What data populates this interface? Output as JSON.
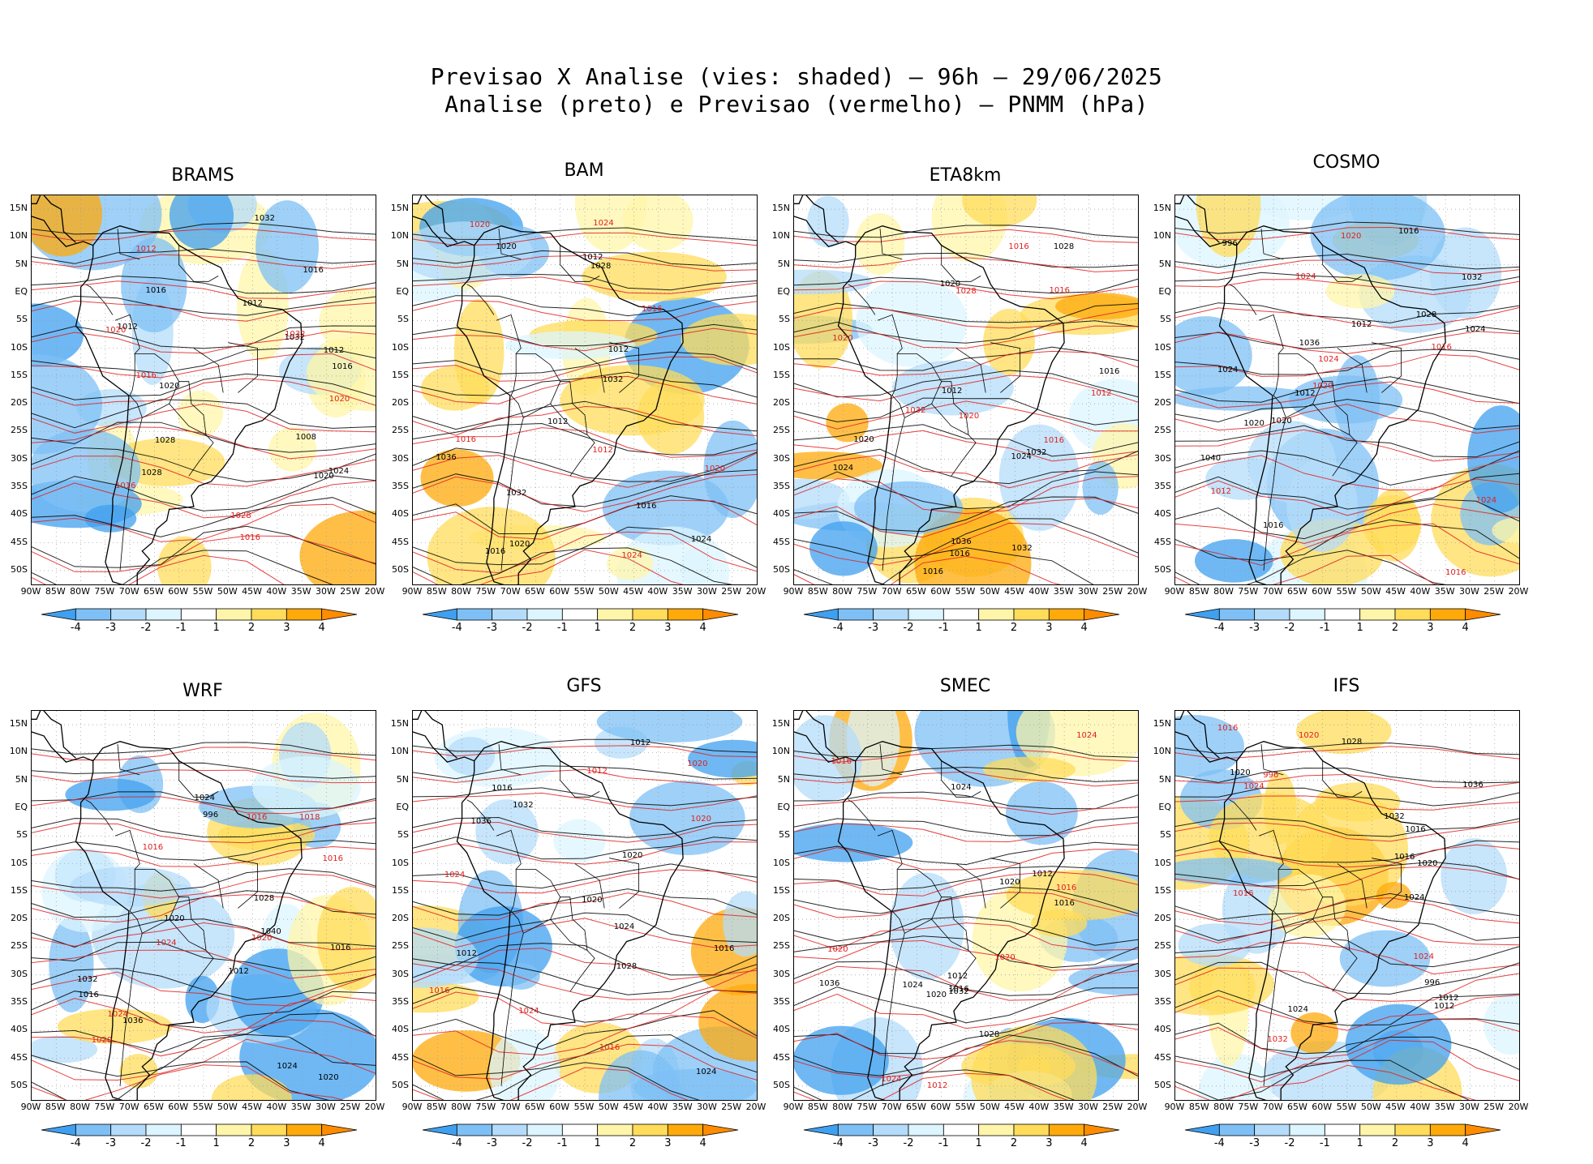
{
  "title_line1": "Previsao X Analise (vies: shaded) — 96h — 29/06/2025",
  "title_line2": "Analise (preto) e Previsao (vermelho) — PNMM (hPa)",
  "lat_labels": [
    "15N",
    "10N",
    "5N",
    "EQ",
    "5S",
    "10S",
    "15S",
    "20S",
    "25S",
    "30S",
    "35S",
    "40S",
    "45S",
    "50S"
  ],
  "lon_labels": [
    "90W",
    "85W",
    "80W",
    "75W",
    "70W",
    "65W",
    "60W",
    "55W",
    "50W",
    "45W",
    "40W",
    "35W",
    "30W",
    "25W",
    "20W"
  ],
  "colorbar": {
    "labels": [
      "-4",
      "-3",
      "-2",
      "-1",
      "1",
      "2",
      "3",
      "4"
    ],
    "colors": [
      "#3fa0f0",
      "#7ec0f5",
      "#b4dcfa",
      "#dcf5ff",
      "#ffffff",
      "#fff5aa",
      "#ffdc5a",
      "#ffaa0a",
      "#ff8c00"
    ]
  },
  "colors": {
    "analysis_contour": "#000000",
    "forecast_contour": "#e02020",
    "land": "#ffffff"
  },
  "panels": [
    {
      "name": "BRAMS",
      "labels_black": [
        "1016",
        "1012",
        "1012",
        "1016",
        "1020",
        "1024",
        "1028",
        "1032",
        "1020",
        "1016",
        "1012",
        "1008",
        "1032",
        "1028"
      ],
      "labels_red": [
        "1016",
        "1012",
        "1016",
        "1020",
        "1032",
        "1028",
        "1020",
        "1016"
      ]
    },
    {
      "name": "BAM",
      "labels_black": [
        "1012",
        "1016",
        "1012",
        "1016",
        "1020",
        "1024",
        "1028",
        "1032",
        "1036",
        "1020",
        "1012",
        "1032"
      ],
      "labels_red": [
        "1016",
        "1012",
        "1016",
        "1020",
        "1024",
        "1024",
        "1020"
      ]
    },
    {
      "name": "ETA8km",
      "labels_black": [
        "1016",
        "1012",
        "1016",
        "1020",
        "1024",
        "1028",
        "1032",
        "1036",
        "1020",
        "1024",
        "1016",
        "1032"
      ],
      "labels_red": [
        "1016",
        "1016",
        "1012",
        "1016",
        "1020",
        "1028",
        "1032",
        "1020"
      ]
    },
    {
      "name": "COSMO",
      "labels_black": [
        "1012",
        "1016",
        "1016",
        "1020",
        "1024",
        "1028",
        "1032",
        "1036",
        "1020",
        "1024",
        "1012",
        "996",
        "1040"
      ],
      "labels_red": [
        "1016",
        "1012",
        "1016",
        "1020",
        "1024",
        "1024",
        "1020",
        "1024"
      ]
    },
    {
      "name": "WRF",
      "labels_black": [
        "1012",
        "1016",
        "1016",
        "1020",
        "1024",
        "1028",
        "1032",
        "1036",
        "1020",
        "1024",
        "1040",
        "996"
      ],
      "labels_red": [
        "1016",
        "1016",
        "1016",
        "1020",
        "1024",
        "1024",
        "1020",
        "1018"
      ]
    },
    {
      "name": "GFS",
      "labels_black": [
        "1012",
        "1016",
        "1016",
        "1020",
        "1024",
        "1028",
        "1032",
        "1036",
        "1020",
        "1024",
        "1012"
      ],
      "labels_red": [
        "1016",
        "1016",
        "1012",
        "1020",
        "1024",
        "1024",
        "1020"
      ]
    },
    {
      "name": "SMEC",
      "labels_black": [
        "1012",
        "1016",
        "1016",
        "1020",
        "1024",
        "1028",
        "1032",
        "1036",
        "1020",
        "1024",
        "1012"
      ],
      "labels_red": [
        "1016",
        "1016",
        "1012",
        "1020",
        "1024",
        "1024",
        "1020"
      ]
    },
    {
      "name": "IFS",
      "labels_black": [
        "1012",
        "1016",
        "1016",
        "1020",
        "1024",
        "1028",
        "1032",
        "1036",
        "1020",
        "1024",
        "1012",
        "996"
      ],
      "labels_red": [
        "1016",
        "1016",
        "1032",
        "1020",
        "1024",
        "1024",
        "996"
      ]
    }
  ]
}
